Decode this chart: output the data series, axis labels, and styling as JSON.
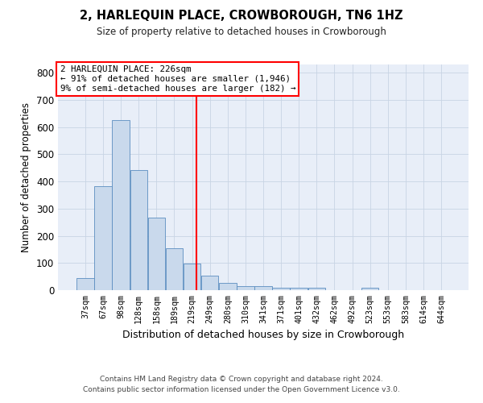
{
  "title": "2, HARLEQUIN PLACE, CROWBOROUGH, TN6 1HZ",
  "subtitle": "Size of property relative to detached houses in Crowborough",
  "xlabel": "Distribution of detached houses by size in Crowborough",
  "ylabel": "Number of detached properties",
  "categories": [
    "37sqm",
    "67sqm",
    "98sqm",
    "128sqm",
    "158sqm",
    "189sqm",
    "219sqm",
    "249sqm",
    "280sqm",
    "310sqm",
    "341sqm",
    "371sqm",
    "401sqm",
    "432sqm",
    "462sqm",
    "492sqm",
    "523sqm",
    "553sqm",
    "583sqm",
    "614sqm",
    "644sqm"
  ],
  "values": [
    45,
    383,
    625,
    443,
    268,
    155,
    98,
    52,
    28,
    15,
    15,
    10,
    10,
    10,
    0,
    0,
    8,
    0,
    0,
    0,
    0
  ],
  "bar_color": "#c9d9ec",
  "bar_edge_color": "#5b8dc0",
  "grid_color": "#c8d4e4",
  "background_color": "#e8eef8",
  "property_label": "2 HARLEQUIN PLACE: 226sqm",
  "annotation_line1": "← 91% of detached houses are smaller (1,946)",
  "annotation_line2": "9% of semi-detached houses are larger (182) →",
  "ylim": [
    0,
    830
  ],
  "yticks": [
    0,
    100,
    200,
    300,
    400,
    500,
    600,
    700,
    800
  ],
  "footnote1": "Contains HM Land Registry data © Crown copyright and database right 2024.",
  "footnote2": "Contains public sector information licensed under the Open Government Licence v3.0."
}
